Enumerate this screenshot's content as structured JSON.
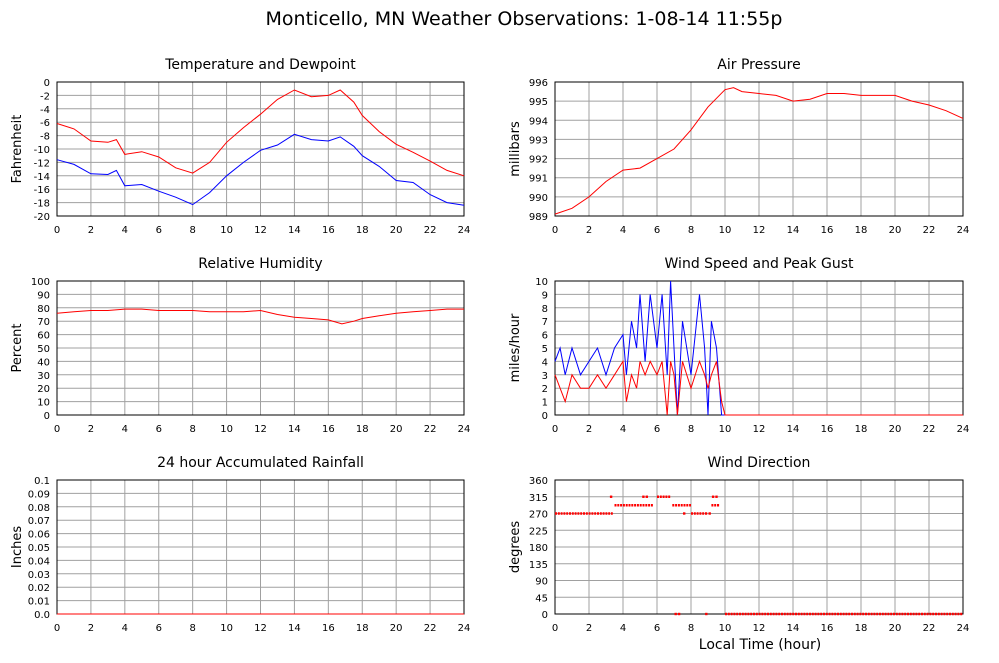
{
  "page": {
    "title": "Monticello, MN Weather Observations: 1-08-14 11:55p",
    "xlabel": "Local Time (hour)"
  },
  "colors": {
    "series_red": "#ff0000",
    "series_blue": "#0000ff",
    "grid": "#a0a0a0"
  },
  "chart_data": [
    {
      "id": "temp",
      "type": "line",
      "title": "Temperature and Dewpoint",
      "ylabel": "Fahrenheit",
      "xlim": [
        0,
        24
      ],
      "ylim": [
        -20,
        0
      ],
      "xticks": [
        0,
        2,
        4,
        6,
        8,
        10,
        12,
        14,
        16,
        18,
        20,
        22,
        24
      ],
      "yticks": [
        0,
        -2,
        -4,
        -6,
        -8,
        -10,
        -12,
        -14,
        -16,
        -18,
        -20
      ],
      "grid": true,
      "series": [
        {
          "color": "#ff0000",
          "x": [
            0,
            1,
            2,
            3,
            3.5,
            4,
            5,
            6,
            7,
            8,
            9,
            10,
            11,
            12,
            13,
            14,
            15,
            16,
            16.7,
            17.5,
            18,
            19,
            20,
            21,
            22,
            23,
            24
          ],
          "y": [
            -6.2,
            -7,
            -8.8,
            -9,
            -8.6,
            -10.8,
            -10.4,
            -11.2,
            -12.8,
            -13.6,
            -12,
            -9,
            -6.8,
            -4.8,
            -2.6,
            -1.2,
            -2.2,
            -2,
            -1.2,
            -3,
            -5,
            -7.4,
            -9.3,
            -10.5,
            -11.8,
            -13.2,
            -14
          ]
        },
        {
          "color": "#0000ff",
          "x": [
            0,
            1,
            2,
            3,
            3.5,
            4,
            5,
            6,
            7,
            8,
            9,
            10,
            11,
            12,
            13,
            14,
            15,
            16,
            16.7,
            17.5,
            18,
            19,
            20,
            21,
            22,
            23,
            24
          ],
          "y": [
            -11.6,
            -12.3,
            -13.7,
            -13.8,
            -13.2,
            -15.5,
            -15.3,
            -16.3,
            -17.2,
            -18.3,
            -16.5,
            -14,
            -12,
            -10.2,
            -9.4,
            -7.8,
            -8.6,
            -8.8,
            -8.2,
            -9.6,
            -11,
            -12.6,
            -14.7,
            -15,
            -16.8,
            -18,
            -18.4
          ]
        }
      ]
    },
    {
      "id": "pressure",
      "type": "line",
      "title": "Air Pressure",
      "ylabel": "millibars",
      "xlim": [
        0,
        24
      ],
      "ylim": [
        989,
        996
      ],
      "xticks": [
        0,
        2,
        4,
        6,
        8,
        10,
        12,
        14,
        16,
        18,
        20,
        22,
        24
      ],
      "yticks": [
        996,
        995,
        994,
        993,
        992,
        991,
        990,
        989
      ],
      "grid": true,
      "series": [
        {
          "color": "#ff0000",
          "x": [
            0,
            1,
            2,
            3,
            4,
            5,
            6,
            7,
            8,
            9,
            10,
            10.5,
            11,
            12,
            13,
            14,
            15,
            16,
            17,
            18,
            19,
            20,
            21,
            22,
            23,
            24
          ],
          "y": [
            989.1,
            989.4,
            990,
            990.8,
            991.4,
            991.5,
            992,
            992.5,
            993.5,
            994.7,
            995.6,
            995.7,
            995.5,
            995.4,
            995.3,
            995,
            995.1,
            995.4,
            995.4,
            995.3,
            995.3,
            995.3,
            995,
            994.8,
            994.5,
            994.1
          ]
        }
      ]
    },
    {
      "id": "humidity",
      "type": "line",
      "title": "Relative Humidity",
      "ylabel": "Percent",
      "xlim": [
        0,
        24
      ],
      "ylim": [
        0,
        100
      ],
      "xticks": [
        0,
        2,
        4,
        6,
        8,
        10,
        12,
        14,
        16,
        18,
        20,
        22,
        24
      ],
      "yticks": [
        100,
        90,
        80,
        70,
        60,
        50,
        40,
        30,
        20,
        10,
        0
      ],
      "grid": true,
      "series": [
        {
          "color": "#ff0000",
          "x": [
            0,
            1,
            2,
            3,
            4,
            5,
            6,
            7,
            8,
            9,
            10,
            11,
            12,
            13,
            14,
            15,
            16,
            16.8,
            17.5,
            18,
            19,
            20,
            21,
            22,
            23,
            24
          ],
          "y": [
            76,
            77,
            78,
            78,
            79,
            79,
            78,
            78,
            78,
            77,
            77,
            77,
            78,
            75,
            73,
            72,
            71,
            68,
            70,
            72,
            74,
            76,
            77,
            78,
            79,
            79
          ]
        }
      ]
    },
    {
      "id": "wind",
      "type": "line",
      "title": "Wind Speed and Peak Gust",
      "ylabel": "miles/hour",
      "xlim": [
        0,
        24
      ],
      "ylim": [
        0,
        10
      ],
      "xticks": [
        0,
        2,
        4,
        6,
        8,
        10,
        12,
        14,
        16,
        18,
        20,
        22,
        24
      ],
      "yticks": [
        10,
        9,
        8,
        7,
        6,
        5,
        4,
        3,
        2,
        1,
        0
      ],
      "grid": true,
      "series": [
        {
          "color": "#0000ff",
          "x": [
            0,
            0.3,
            0.6,
            1,
            1.5,
            2,
            2.5,
            3,
            3.5,
            4,
            4.2,
            4.5,
            4.8,
            5,
            5.3,
            5.6,
            6,
            6.3,
            6.6,
            6.8,
            7,
            7.2,
            7.5,
            8,
            8.5,
            8.8,
            9,
            9.2,
            9.5,
            9.8,
            10,
            24
          ],
          "y": [
            4,
            5,
            3,
            5,
            3,
            4,
            5,
            3,
            5,
            6,
            3,
            7,
            5,
            9,
            4,
            9,
            5,
            9,
            3,
            10,
            5,
            0,
            7,
            3,
            9,
            5,
            0,
            7,
            5,
            0,
            0,
            0
          ]
        },
        {
          "color": "#ff0000",
          "x": [
            0,
            0.3,
            0.6,
            1,
            1.5,
            2,
            2.5,
            3,
            3.5,
            4,
            4.2,
            4.5,
            4.8,
            5,
            5.3,
            5.6,
            6,
            6.3,
            6.6,
            6.8,
            7,
            7.2,
            7.5,
            8,
            8.5,
            8.8,
            9,
            9.2,
            9.5,
            9.8,
            10,
            24
          ],
          "y": [
            3,
            2,
            1,
            3,
            2,
            2,
            3,
            2,
            3,
            4,
            1,
            3,
            2,
            4,
            3,
            4,
            3,
            4,
            0,
            4,
            3,
            0,
            4,
            2,
            4,
            3,
            2,
            3,
            4,
            1,
            0,
            0
          ]
        }
      ]
    },
    {
      "id": "rain",
      "type": "line",
      "title": "24 hour Accumulated Rainfall",
      "ylabel": "Inches",
      "xlim": [
        0,
        24
      ],
      "ylim": [
        0,
        0.1
      ],
      "xticks": [
        0,
        2,
        4,
        6,
        8,
        10,
        12,
        14,
        16,
        18,
        20,
        22,
        24
      ],
      "yticks": [
        "0.1",
        "0.09",
        "0.08",
        "0.07",
        "0.06",
        "0.05",
        "0.04",
        "0.03",
        "0.02",
        "0.01",
        "0.0"
      ],
      "grid": true,
      "series": [
        {
          "color": "#ff0000",
          "x": [
            0,
            24
          ],
          "y": [
            0,
            0
          ]
        }
      ]
    },
    {
      "id": "direction",
      "type": "scatter",
      "title": "Wind Direction",
      "ylabel": "degrees",
      "xlim": [
        0,
        24
      ],
      "ylim": [
        0,
        360
      ],
      "xticks": [
        0,
        2,
        4,
        6,
        8,
        10,
        12,
        14,
        16,
        18,
        20,
        22,
        24
      ],
      "yticks": [
        360,
        315,
        270,
        225,
        180,
        135,
        90,
        45,
        0
      ],
      "grid": true,
      "segments": [
        {
          "x0": 0,
          "x1": 3.4,
          "y": 270
        },
        {
          "x0": 3.5,
          "x1": 5.8,
          "y": 292
        },
        {
          "x0": 6,
          "x1": 6.8,
          "y": 315
        },
        {
          "x0": 6.9,
          "x1": 8.0,
          "y": 292
        },
        {
          "x0": 8.0,
          "x1": 9.0,
          "y": 270
        },
        {
          "x0": 9.2,
          "x1": 9.7,
          "y": 292
        },
        {
          "x0": 10,
          "x1": 24,
          "y": 0
        }
      ],
      "points": [
        {
          "x": 3.3,
          "y": 315
        },
        {
          "x": 5.2,
          "y": 315
        },
        {
          "x": 5.4,
          "y": 315
        },
        {
          "x": 7.1,
          "y": 0
        },
        {
          "x": 7.3,
          "y": 0
        },
        {
          "x": 7.6,
          "y": 270
        },
        {
          "x": 8.9,
          "y": 0
        },
        {
          "x": 9.1,
          "y": 270
        },
        {
          "x": 9.3,
          "y": 315
        },
        {
          "x": 9.5,
          "y": 315
        }
      ]
    }
  ]
}
